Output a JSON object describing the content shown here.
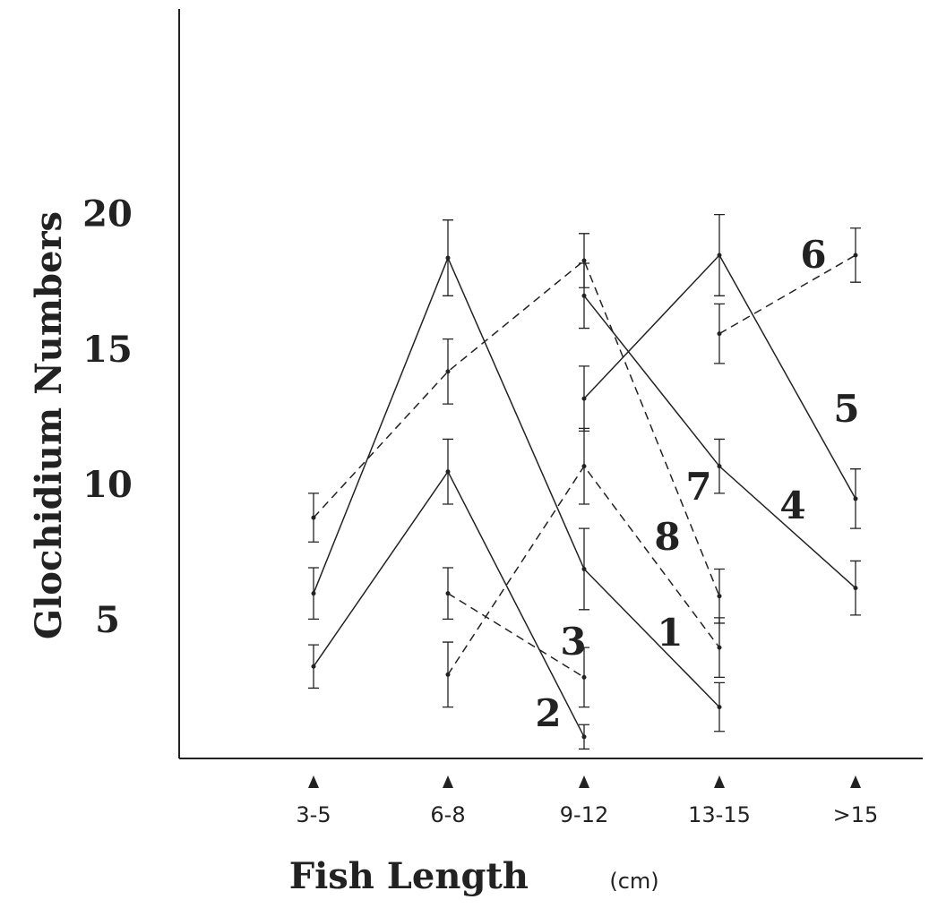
{
  "chart_data": {
    "type": "line",
    "y_label": "Glochidium Numbers",
    "x_label": "Fish Length",
    "x_unit": "(cm)",
    "categories": [
      "3-5",
      "6-8",
      "9-12",
      "13-15",
      ">15"
    ],
    "ylim": [
      0,
      27.7
    ],
    "yticks": [
      5,
      10,
      15,
      20
    ],
    "color": "#222222",
    "series": [
      {
        "name": "1",
        "dash": false,
        "values": [
          6.1,
          18.5,
          7.0,
          1.9,
          null
        ],
        "errors": [
          0.95,
          1.4,
          1.5,
          0.9,
          null
        ]
      },
      {
        "name": "2",
        "dash": false,
        "values": [
          3.4,
          10.6,
          0.8,
          null,
          null
        ],
        "errors": [
          0.8,
          1.2,
          0.45,
          null,
          null
        ]
      },
      {
        "name": "3",
        "dash": true,
        "values": [
          null,
          6.1,
          3.0,
          null,
          null
        ],
        "errors": [
          null,
          0.95,
          1.1,
          null,
          null
        ]
      },
      {
        "name": "4",
        "dash": false,
        "values": [
          null,
          null,
          17.1,
          10.8,
          6.3
        ],
        "errors": [
          null,
          null,
          1.2,
          1.0,
          1.0
        ]
      },
      {
        "name": "5",
        "dash": false,
        "values": [
          null,
          null,
          13.3,
          18.6,
          9.6
        ],
        "errors": [
          null,
          null,
          1.2,
          1.5,
          1.1
        ]
      },
      {
        "name": "6",
        "dash": true,
        "values": [
          null,
          null,
          null,
          15.7,
          18.6
        ],
        "errors": [
          null,
          null,
          null,
          1.1,
          1.0
        ]
      },
      {
        "name": "7",
        "dash": true,
        "values": [
          8.9,
          14.3,
          18.4,
          6.0,
          null
        ],
        "errors": [
          0.9,
          1.2,
          1.0,
          1.0,
          null
        ]
      },
      {
        "name": "8",
        "dash": true,
        "values": [
          null,
          3.1,
          10.8,
          4.1,
          null
        ],
        "errors": [
          null,
          1.2,
          1.4,
          1.1,
          null
        ]
      }
    ]
  }
}
